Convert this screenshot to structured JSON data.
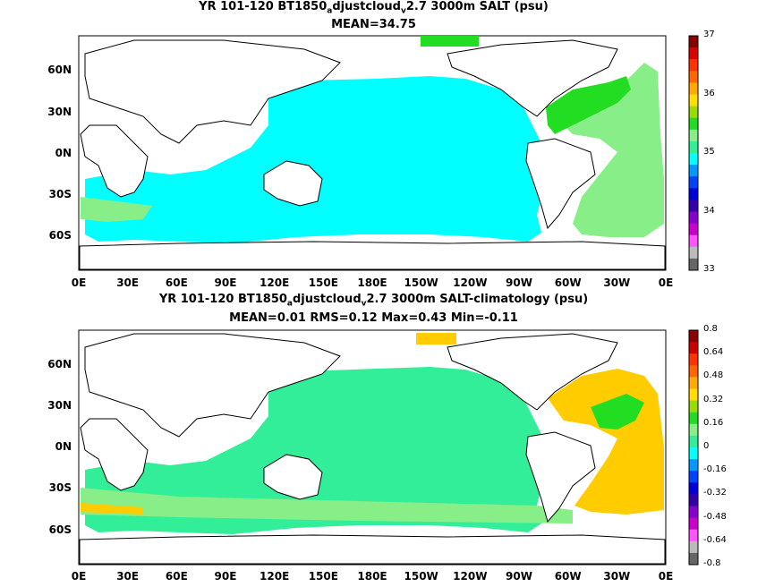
{
  "colors": {
    "ocean_cyan": "#00ffff",
    "light_green": "#88ee88",
    "green": "#22dd22",
    "mint": "#33ee99",
    "orange": "#ffcc00",
    "dark_orange": "#ffaa00",
    "land": "#ffffff"
  },
  "chart_data": [
    {
      "type": "heatmap",
      "title_prefix": "YR 101-120 BT1850",
      "title_sub1": "a",
      "title_mid": "djustcloud",
      "title_sub2": "v",
      "title_suffix": "2.7 3000m SALT (psu)",
      "stats": "MEAN=34.75",
      "x_ticks": [
        "0E",
        "30E",
        "60E",
        "90E",
        "120E",
        "150E",
        "180E",
        "150W",
        "120W",
        "90W",
        "60W",
        "30W",
        "0E"
      ],
      "y_ticks": [
        "60N",
        "30N",
        "0N",
        "30S",
        "60S"
      ],
      "colorbar_ticks": [
        "37",
        "36",
        "35",
        "34",
        "33"
      ],
      "colorbar_colors": [
        "#8b0000",
        "#dd0000",
        "#ff3300",
        "#ff6600",
        "#ffaa00",
        "#ffdd00",
        "#99dd00",
        "#22dd22",
        "#88ee88",
        "#33ee99",
        "#00ffff",
        "#0099ff",
        "#0044ff",
        "#0000dd",
        "#3300aa",
        "#8800cc",
        "#cc00cc",
        "#ff55ff",
        "#bbbbbb",
        "#666666"
      ]
    },
    {
      "type": "heatmap",
      "title_prefix": "YR 101-120 BT1850",
      "title_sub1": "a",
      "title_mid": "djustcloud",
      "title_sub2": "v",
      "title_suffix": "2.7 3000m SALT-climatology (psu)",
      "stats": "MEAN=0.01   RMS=0.12   Max=0.43   Min=-0.11",
      "x_ticks": [
        "0E",
        "30E",
        "60E",
        "90E",
        "120E",
        "150E",
        "180E",
        "150W",
        "120W",
        "90W",
        "60W",
        "30W",
        "0E"
      ],
      "y_ticks": [
        "60N",
        "30N",
        "0N",
        "30S",
        "60S"
      ],
      "colorbar_ticks": [
        "0.8",
        "0.64",
        "0.48",
        "0.32",
        "0.16",
        "0",
        "-0.16",
        "-0.32",
        "-0.48",
        "-0.64",
        "-0.8"
      ],
      "colorbar_colors": [
        "#8b0000",
        "#cc0000",
        "#ff3300",
        "#ff6600",
        "#ffaa00",
        "#ffdd00",
        "#99dd00",
        "#22dd22",
        "#88ee88",
        "#33ee99",
        "#00ffff",
        "#0099ff",
        "#0044ff",
        "#0000dd",
        "#3300aa",
        "#8800cc",
        "#cc00cc",
        "#ff55ff",
        "#bbbbbb",
        "#666666"
      ]
    }
  ]
}
